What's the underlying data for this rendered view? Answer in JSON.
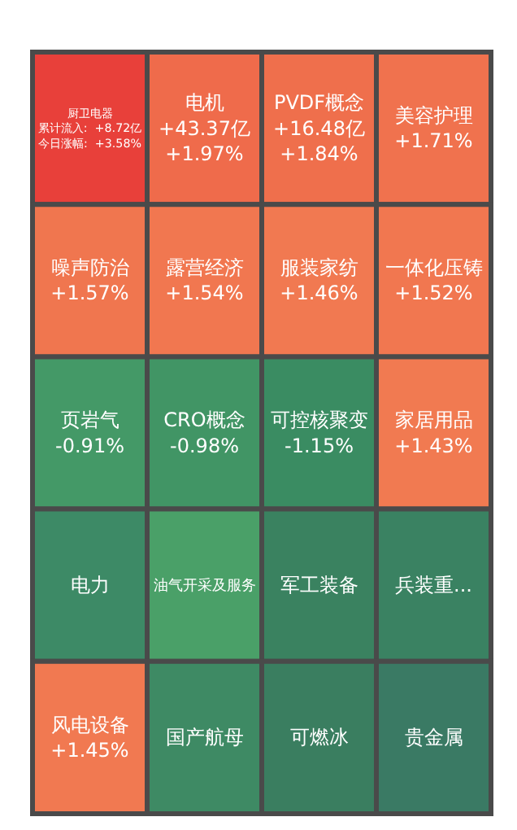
{
  "chart_data": {
    "type": "other",
    "categories": [
      "厨卫电器",
      "电机",
      "PVDF概念",
      "美容护理",
      "噪声防治",
      "露营经济",
      "服装家纺",
      "一体化压铸",
      "页岩气",
      "电力",
      "风电设备",
      "CRO概念",
      "可控核聚变",
      "家居用品",
      "油气开采及服务",
      "国产航母",
      "军工装备",
      "兵装重...",
      "可燃冰",
      "贵金属"
    ],
    "values": [
      3.58,
      1.97,
      1.84,
      1.71,
      1.57,
      1.54,
      1.46,
      1.52,
      -0.91,
      null,
      1.45,
      -0.98,
      -1.15,
      1.43,
      null,
      null,
      null,
      null,
      null,
      null
    ],
    "annotations": [
      {
        "text": "累计流入:  +8.72亿",
        "x": "厨卫电器"
      }
    ],
    "value_labels": [
      "今日涨幅:  +3.58%",
      "+43.37亿\n+1.97%",
      "+16.48亿\n+1.84%",
      "+1.71%",
      "+1.57%",
      "+1.54%",
      "+1.46%",
      "+1.52%",
      "-0.91%",
      null,
      "+1.45%",
      "-0.98%",
      "-1.15%",
      "+1.43%",
      null,
      null,
      null,
      null,
      null,
      null
    ],
    "colors": [
      null,
      null,
      null,
      null,
      null,
      null,
      null,
      null,
      null,
      "#3d8a66",
      null,
      null,
      null,
      null,
      "#4aa068",
      "#3e8a64",
      "#3a8260",
      "#3a8262",
      "#3a7e60",
      "#3a7a64"
    ]
  }
}
